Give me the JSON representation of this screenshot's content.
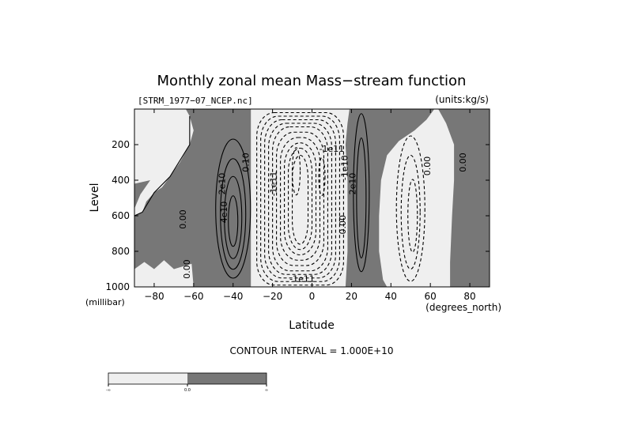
{
  "chart_data": {
    "type": "contour",
    "title": "Monthly zonal mean Mass−stream function",
    "file_label": "[STRM_1977−07_NCEP.nc]",
    "units_label": "(units:kg/s)",
    "xlabel": "Latitude",
    "x_unit_label": "(degrees_north)",
    "ylabel": "Level",
    "y_unit_label": "(millibar)",
    "xlim": [
      -90,
      90
    ],
    "ylim": [
      1000,
      0
    ],
    "x_ticks": [
      -80,
      -60,
      -40,
      -20,
      0,
      20,
      40,
      60,
      80
    ],
    "x_tick_labels": [
      "−80",
      "−60",
      "−40",
      "−20",
      "0",
      "20",
      "40",
      "60",
      "80"
    ],
    "y_ticks": [
      200,
      400,
      600,
      800,
      1000
    ],
    "y_tick_labels": [
      "200",
      "400",
      "600",
      "800",
      "1000"
    ],
    "contour_interval_label": "CONTOUR INTERVAL = 1.000E+10",
    "contour_labels": [
      {
        "text": "0.00",
        "x": -64,
        "y": 620,
        "rot": -90
      },
      {
        "text": "2e10",
        "x": -44,
        "y": 420,
        "rot": -90
      },
      {
        "text": "4e10",
        "x": -43,
        "y": 580,
        "rot": -90
      },
      {
        "text": "0.10",
        "x": -32,
        "y": 300,
        "rot": -90
      },
      {
        "text": "-1e11",
        "x": -18,
        "y": 420,
        "rot": -90
      },
      {
        "text": "-1e11",
        "x": 10,
        "y": 240,
        "rot": 0
      },
      {
        "text": "-1e10",
        "x": 18,
        "y": 330,
        "rot": -90
      },
      {
        "text": "2e10",
        "x": 22,
        "y": 420,
        "rot": -90
      },
      {
        "text": "0.00",
        "x": 17,
        "y": 650,
        "rot": -90
      },
      {
        "text": "0.00",
        "x": 60,
        "y": 320,
        "rot": -90
      },
      {
        "text": "0.00",
        "x": 78,
        "y": 300,
        "rot": -90
      },
      {
        "text": "0.00",
        "x": -62,
        "y": 900,
        "rot": -90
      },
      {
        "text": "-1e11",
        "x": -5,
        "y": 970,
        "rot": 0
      }
    ],
    "colorbar": {
      "bins": [
        {
          "color": "#efefef",
          "range": [
            null,
            0
          ]
        },
        {
          "color": "#777777",
          "range": [
            0,
            null
          ]
        }
      ],
      "tick_labels": [
        "-∞",
        "0.0",
        "∞"
      ]
    },
    "colors": {
      "negative_fill": "#efefef",
      "positive_fill": "#777777",
      "contour": "#000000"
    }
  }
}
